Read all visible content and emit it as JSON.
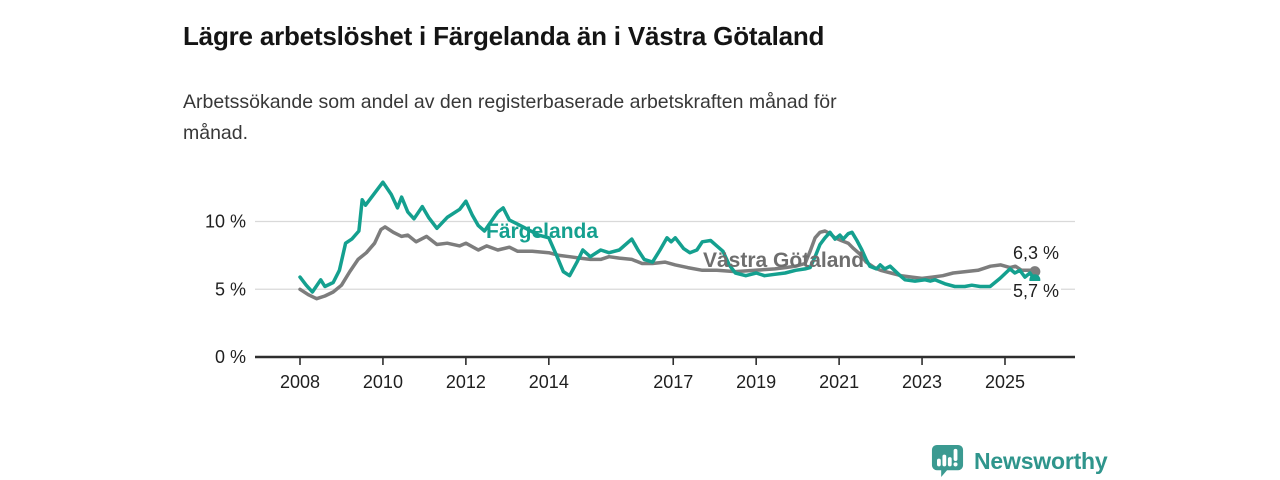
{
  "header": {
    "title": "Lägre arbetslöshet i Färgelanda än i Västra Götaland",
    "subtitle": "Arbetssökande som andel av den registerbaserade arbetskraften månad för månad."
  },
  "chart_data": {
    "type": "line",
    "title": "Lägre arbetslöshet i Färgelanda än i Västra Götaland",
    "subtitle_lines": [
      "Arbetssökande som andel av den registerbaserade arbetskraften månad för",
      "månad."
    ],
    "unit": "%",
    "grid": "horizontal",
    "legend_position": "inline-labels",
    "ylim": [
      0,
      14
    ],
    "x_range": [
      2008.0,
      2025.72
    ],
    "y_ticks": [
      {
        "value": 10,
        "label": "10 %"
      },
      {
        "value": 5,
        "label": "5 %"
      },
      {
        "value": 0,
        "label": "0 %"
      }
    ],
    "x_ticks": [
      {
        "value": 2008,
        "label": "2008"
      },
      {
        "value": 2010,
        "label": "2010"
      },
      {
        "value": 2012,
        "label": "2012"
      },
      {
        "value": 2014,
        "label": "2014"
      },
      {
        "value": 2017,
        "label": "2017"
      },
      {
        "value": 2019,
        "label": "2019"
      },
      {
        "value": 2021,
        "label": "2021"
      },
      {
        "value": 2023,
        "label": "2023"
      },
      {
        "value": 2025,
        "label": "2025"
      }
    ],
    "series": [
      {
        "id": "fargelanda",
        "name": "Färgelanda",
        "color": "#14a08f",
        "end_label": "5,7 %",
        "end_value": 5.7,
        "points": [
          [
            2008.0,
            5.9
          ],
          [
            2008.15,
            5.3
          ],
          [
            2008.3,
            4.8
          ],
          [
            2008.5,
            5.7
          ],
          [
            2008.6,
            5.2
          ],
          [
            2008.8,
            5.5
          ],
          [
            2008.95,
            6.4
          ],
          [
            2009.1,
            8.4
          ],
          [
            2009.25,
            8.7
          ],
          [
            2009.42,
            9.3
          ],
          [
            2009.5,
            11.6
          ],
          [
            2009.58,
            11.2
          ],
          [
            2009.75,
            11.9
          ],
          [
            2010.0,
            12.9
          ],
          [
            2010.2,
            12.0
          ],
          [
            2010.35,
            11.0
          ],
          [
            2010.45,
            11.8
          ],
          [
            2010.6,
            10.7
          ],
          [
            2010.75,
            10.2
          ],
          [
            2010.95,
            11.1
          ],
          [
            2011.1,
            10.3
          ],
          [
            2011.3,
            9.5
          ],
          [
            2011.55,
            10.3
          ],
          [
            2011.85,
            10.9
          ],
          [
            2012.0,
            11.5
          ],
          [
            2012.15,
            10.5
          ],
          [
            2012.3,
            9.7
          ],
          [
            2012.45,
            9.3
          ],
          [
            2012.77,
            10.7
          ],
          [
            2012.9,
            11.0
          ],
          [
            2013.05,
            10.1
          ],
          [
            2013.25,
            9.8
          ],
          [
            2013.5,
            9.4
          ],
          [
            2013.75,
            9.0
          ],
          [
            2014.0,
            8.8
          ],
          [
            2014.2,
            7.4
          ],
          [
            2014.35,
            6.3
          ],
          [
            2014.5,
            6.0
          ],
          [
            2014.68,
            7.0
          ],
          [
            2014.82,
            7.9
          ],
          [
            2015.0,
            7.4
          ],
          [
            2015.25,
            7.9
          ],
          [
            2015.45,
            7.7
          ],
          [
            2015.7,
            7.9
          ],
          [
            2016.0,
            8.7
          ],
          [
            2016.15,
            7.9
          ],
          [
            2016.3,
            7.2
          ],
          [
            2016.5,
            7.0
          ],
          [
            2016.68,
            7.9
          ],
          [
            2016.85,
            8.8
          ],
          [
            2016.95,
            8.5
          ],
          [
            2017.05,
            8.8
          ],
          [
            2017.25,
            8.0
          ],
          [
            2017.4,
            7.7
          ],
          [
            2017.57,
            7.9
          ],
          [
            2017.7,
            8.5
          ],
          [
            2017.9,
            8.6
          ],
          [
            2018.05,
            8.2
          ],
          [
            2018.2,
            7.8
          ],
          [
            2018.35,
            6.8
          ],
          [
            2018.5,
            6.2
          ],
          [
            2018.75,
            6.0
          ],
          [
            2019.0,
            6.2
          ],
          [
            2019.2,
            6.0
          ],
          [
            2019.45,
            6.1
          ],
          [
            2019.7,
            6.2
          ],
          [
            2019.95,
            6.4
          ],
          [
            2020.18,
            6.5
          ],
          [
            2020.3,
            6.6
          ],
          [
            2020.42,
            7.4
          ],
          [
            2020.54,
            8.3
          ],
          [
            2020.66,
            8.8
          ],
          [
            2020.78,
            9.2
          ],
          [
            2020.9,
            8.7
          ],
          [
            2021.02,
            9.0
          ],
          [
            2021.1,
            8.7
          ],
          [
            2021.22,
            9.1
          ],
          [
            2021.31,
            9.2
          ],
          [
            2021.43,
            8.6
          ],
          [
            2021.55,
            7.9
          ],
          [
            2021.65,
            7.2
          ],
          [
            2021.74,
            6.7
          ],
          [
            2021.9,
            6.5
          ],
          [
            2021.99,
            6.8
          ],
          [
            2022.1,
            6.5
          ],
          [
            2022.23,
            6.7
          ],
          [
            2022.47,
            6.0
          ],
          [
            2022.59,
            5.7
          ],
          [
            2022.83,
            5.6
          ],
          [
            2023.07,
            5.7
          ],
          [
            2023.2,
            5.6
          ],
          [
            2023.31,
            5.7
          ],
          [
            2023.55,
            5.4
          ],
          [
            2023.79,
            5.2
          ],
          [
            2024.03,
            5.2
          ],
          [
            2024.2,
            5.3
          ],
          [
            2024.4,
            5.2
          ],
          [
            2024.64,
            5.2
          ],
          [
            2024.88,
            5.8
          ],
          [
            2025.12,
            6.5
          ],
          [
            2025.24,
            6.2
          ],
          [
            2025.36,
            6.4
          ],
          [
            2025.48,
            5.9
          ],
          [
            2025.6,
            6.2
          ],
          [
            2025.72,
            5.7
          ]
        ]
      },
      {
        "id": "vastra-gotaland",
        "name": "Västra Götaland",
        "color": "#7d7d7d",
        "end_label": "6,3 %",
        "end_value": 6.3,
        "points": [
          [
            2008.0,
            5.0
          ],
          [
            2008.2,
            4.6
          ],
          [
            2008.4,
            4.3
          ],
          [
            2008.6,
            4.5
          ],
          [
            2008.8,
            4.8
          ],
          [
            2009.0,
            5.3
          ],
          [
            2009.2,
            6.3
          ],
          [
            2009.4,
            7.2
          ],
          [
            2009.6,
            7.7
          ],
          [
            2009.8,
            8.4
          ],
          [
            2009.95,
            9.4
          ],
          [
            2010.05,
            9.6
          ],
          [
            2010.25,
            9.2
          ],
          [
            2010.45,
            8.9
          ],
          [
            2010.6,
            9.0
          ],
          [
            2010.8,
            8.5
          ],
          [
            2011.05,
            8.9
          ],
          [
            2011.3,
            8.3
          ],
          [
            2011.55,
            8.4
          ],
          [
            2011.85,
            8.2
          ],
          [
            2012.0,
            8.4
          ],
          [
            2012.3,
            7.9
          ],
          [
            2012.5,
            8.2
          ],
          [
            2012.77,
            7.9
          ],
          [
            2013.05,
            8.1
          ],
          [
            2013.25,
            7.8
          ],
          [
            2013.6,
            7.8
          ],
          [
            2014.0,
            7.7
          ],
          [
            2014.25,
            7.5
          ],
          [
            2014.5,
            7.4
          ],
          [
            2014.75,
            7.3
          ],
          [
            2015.0,
            7.2
          ],
          [
            2015.25,
            7.2
          ],
          [
            2015.45,
            7.4
          ],
          [
            2015.7,
            7.3
          ],
          [
            2016.0,
            7.2
          ],
          [
            2016.25,
            6.9
          ],
          [
            2016.5,
            6.9
          ],
          [
            2016.8,
            7.0
          ],
          [
            2017.05,
            6.8
          ],
          [
            2017.35,
            6.6
          ],
          [
            2017.7,
            6.4
          ],
          [
            2018.05,
            6.4
          ],
          [
            2018.5,
            6.3
          ],
          [
            2018.97,
            6.4
          ],
          [
            2019.45,
            6.5
          ],
          [
            2019.7,
            6.6
          ],
          [
            2019.95,
            6.7
          ],
          [
            2020.18,
            6.9
          ],
          [
            2020.3,
            7.8
          ],
          [
            2020.42,
            8.8
          ],
          [
            2020.54,
            9.2
          ],
          [
            2020.66,
            9.3
          ],
          [
            2020.78,
            9.1
          ],
          [
            2020.9,
            8.8
          ],
          [
            2021.05,
            8.6
          ],
          [
            2021.22,
            8.4
          ],
          [
            2021.35,
            8.0
          ],
          [
            2021.5,
            7.6
          ],
          [
            2021.65,
            7.0
          ],
          [
            2021.85,
            6.6
          ],
          [
            2022.0,
            6.4
          ],
          [
            2022.25,
            6.2
          ],
          [
            2022.5,
            6.0
          ],
          [
            2022.75,
            5.9
          ],
          [
            2023.0,
            5.8
          ],
          [
            2023.25,
            5.9
          ],
          [
            2023.5,
            6.0
          ],
          [
            2023.75,
            6.2
          ],
          [
            2024.05,
            6.3
          ],
          [
            2024.35,
            6.4
          ],
          [
            2024.65,
            6.7
          ],
          [
            2024.9,
            6.8
          ],
          [
            2025.12,
            6.6
          ],
          [
            2025.25,
            6.7
          ],
          [
            2025.4,
            6.4
          ],
          [
            2025.6,
            6.4
          ],
          [
            2025.72,
            6.3
          ]
        ]
      }
    ]
  },
  "footer": {
    "brand": "Newsworthy"
  }
}
